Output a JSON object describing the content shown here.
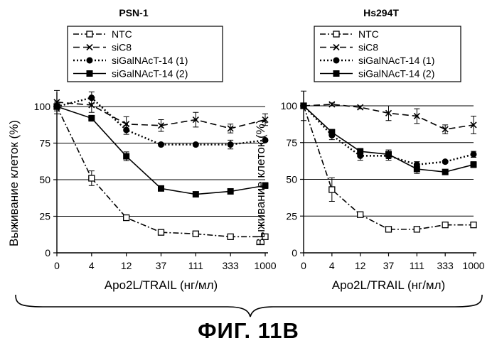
{
  "figure_caption": "ФИГ. 11В",
  "chart_data": [
    {
      "type": "line",
      "title": "PSN-1",
      "xlabel": "Apo2L/TRAIL (нг/мл)",
      "ylabel": "Выживание клеток (%)",
      "categories": [
        "0",
        "4",
        "12",
        "37",
        "111",
        "333",
        "1000"
      ],
      "yticks": [
        "0",
        "25",
        "50",
        "75",
        "100"
      ],
      "ylim": [
        0,
        100
      ],
      "grid": "horizontal",
      "legend_position": "top",
      "series": [
        {
          "name": "NTC",
          "marker": "square-open",
          "line": "dashdot",
          "values": [
            100,
            51,
            24,
            14,
            13,
            11,
            11
          ],
          "err": [
            0,
            5,
            1,
            1,
            1,
            1,
            1
          ]
        },
        {
          "name": "siC8",
          "marker": "cross",
          "line": "dashed",
          "values": [
            103,
            101,
            88,
            87,
            91,
            85,
            91
          ],
          "err": [
            8,
            5,
            5,
            4,
            5,
            3,
            4
          ]
        },
        {
          "name": "siGalNAcT-14 (1)",
          "marker": "circle-filled",
          "line": "dotted",
          "values": [
            100,
            106,
            84,
            74,
            74,
            74,
            77
          ],
          "err": [
            3,
            4,
            3,
            1,
            1,
            3,
            1
          ]
        },
        {
          "name": "siGalNAcT-14 (2)",
          "marker": "square-filled",
          "line": "solid",
          "values": [
            100,
            92,
            66,
            44,
            40,
            42,
            46
          ],
          "err": [
            2,
            2,
            3,
            1,
            1,
            1,
            2
          ]
        }
      ]
    },
    {
      "type": "line",
      "title": "Hs294T",
      "xlabel": "Apo2L/TRAIL (нг/мл)",
      "ylabel": "Выживание клеток (%)",
      "categories": [
        "0",
        "4",
        "12",
        "37",
        "111",
        "333",
        "1000"
      ],
      "yticks": [
        "0",
        "25",
        "50",
        "75",
        "100"
      ],
      "ylim": [
        0,
        100
      ],
      "grid": "horizontal",
      "legend_position": "top",
      "series": [
        {
          "name": "NTC",
          "marker": "square-open",
          "line": "dashdot",
          "values": [
            100,
            43,
            26,
            16,
            16,
            19,
            19
          ],
          "err": [
            10,
            8,
            1,
            1,
            1,
            1,
            1
          ]
        },
        {
          "name": "siC8",
          "marker": "cross",
          "line": "dashed",
          "values": [
            100,
            101,
            99,
            95,
            93,
            84,
            87
          ],
          "err": [
            1,
            1,
            1,
            5,
            5,
            3,
            6
          ]
        },
        {
          "name": "siGalNAcT-14 (1)",
          "marker": "circle-filled",
          "line": "dotted",
          "values": [
            100,
            80,
            66,
            66,
            60,
            62,
            67
          ],
          "err": [
            1,
            3,
            3,
            3,
            2,
            1,
            2
          ]
        },
        {
          "name": "siGalNAcT-14 (2)",
          "marker": "square-filled",
          "line": "solid",
          "values": [
            100,
            82,
            69,
            67,
            57,
            55,
            60
          ],
          "err": [
            1,
            2,
            2,
            3,
            3,
            1,
            2
          ]
        }
      ]
    }
  ]
}
